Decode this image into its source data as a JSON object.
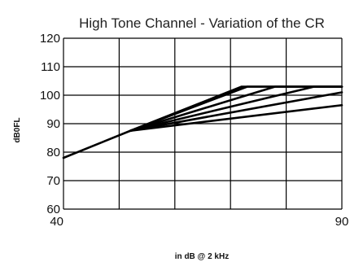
{
  "chart_data": {
    "type": "line",
    "title": "High Tone Channel - Variation of the CR",
    "xlabel": "in dB @ 2 kHz",
    "ylabel": "dB0FL",
    "xlim": [
      40,
      90
    ],
    "ylim": [
      60,
      120
    ],
    "x_ticks": [
      40,
      90
    ],
    "y_ticks": [
      60,
      70,
      80,
      90,
      100,
      110,
      120
    ],
    "grid": true,
    "line_color": "#000000",
    "series": [
      {
        "x": [
          40,
          52,
          72,
          90
        ],
        "y": [
          78,
          87.5,
          103,
          103
        ]
      },
      {
        "x": [
          52,
          73,
          90
        ],
        "y": [
          87.5,
          103,
          103
        ]
      },
      {
        "x": [
          52,
          78,
          90
        ],
        "y": [
          87.5,
          103,
          103
        ]
      },
      {
        "x": [
          52,
          85,
          90
        ],
        "y": [
          87.5,
          103,
          103
        ]
      },
      {
        "x": [
          52,
          90
        ],
        "y": [
          87.5,
          101
        ]
      },
      {
        "x": [
          52,
          90
        ],
        "y": [
          87.5,
          96.5
        ]
      }
    ]
  }
}
